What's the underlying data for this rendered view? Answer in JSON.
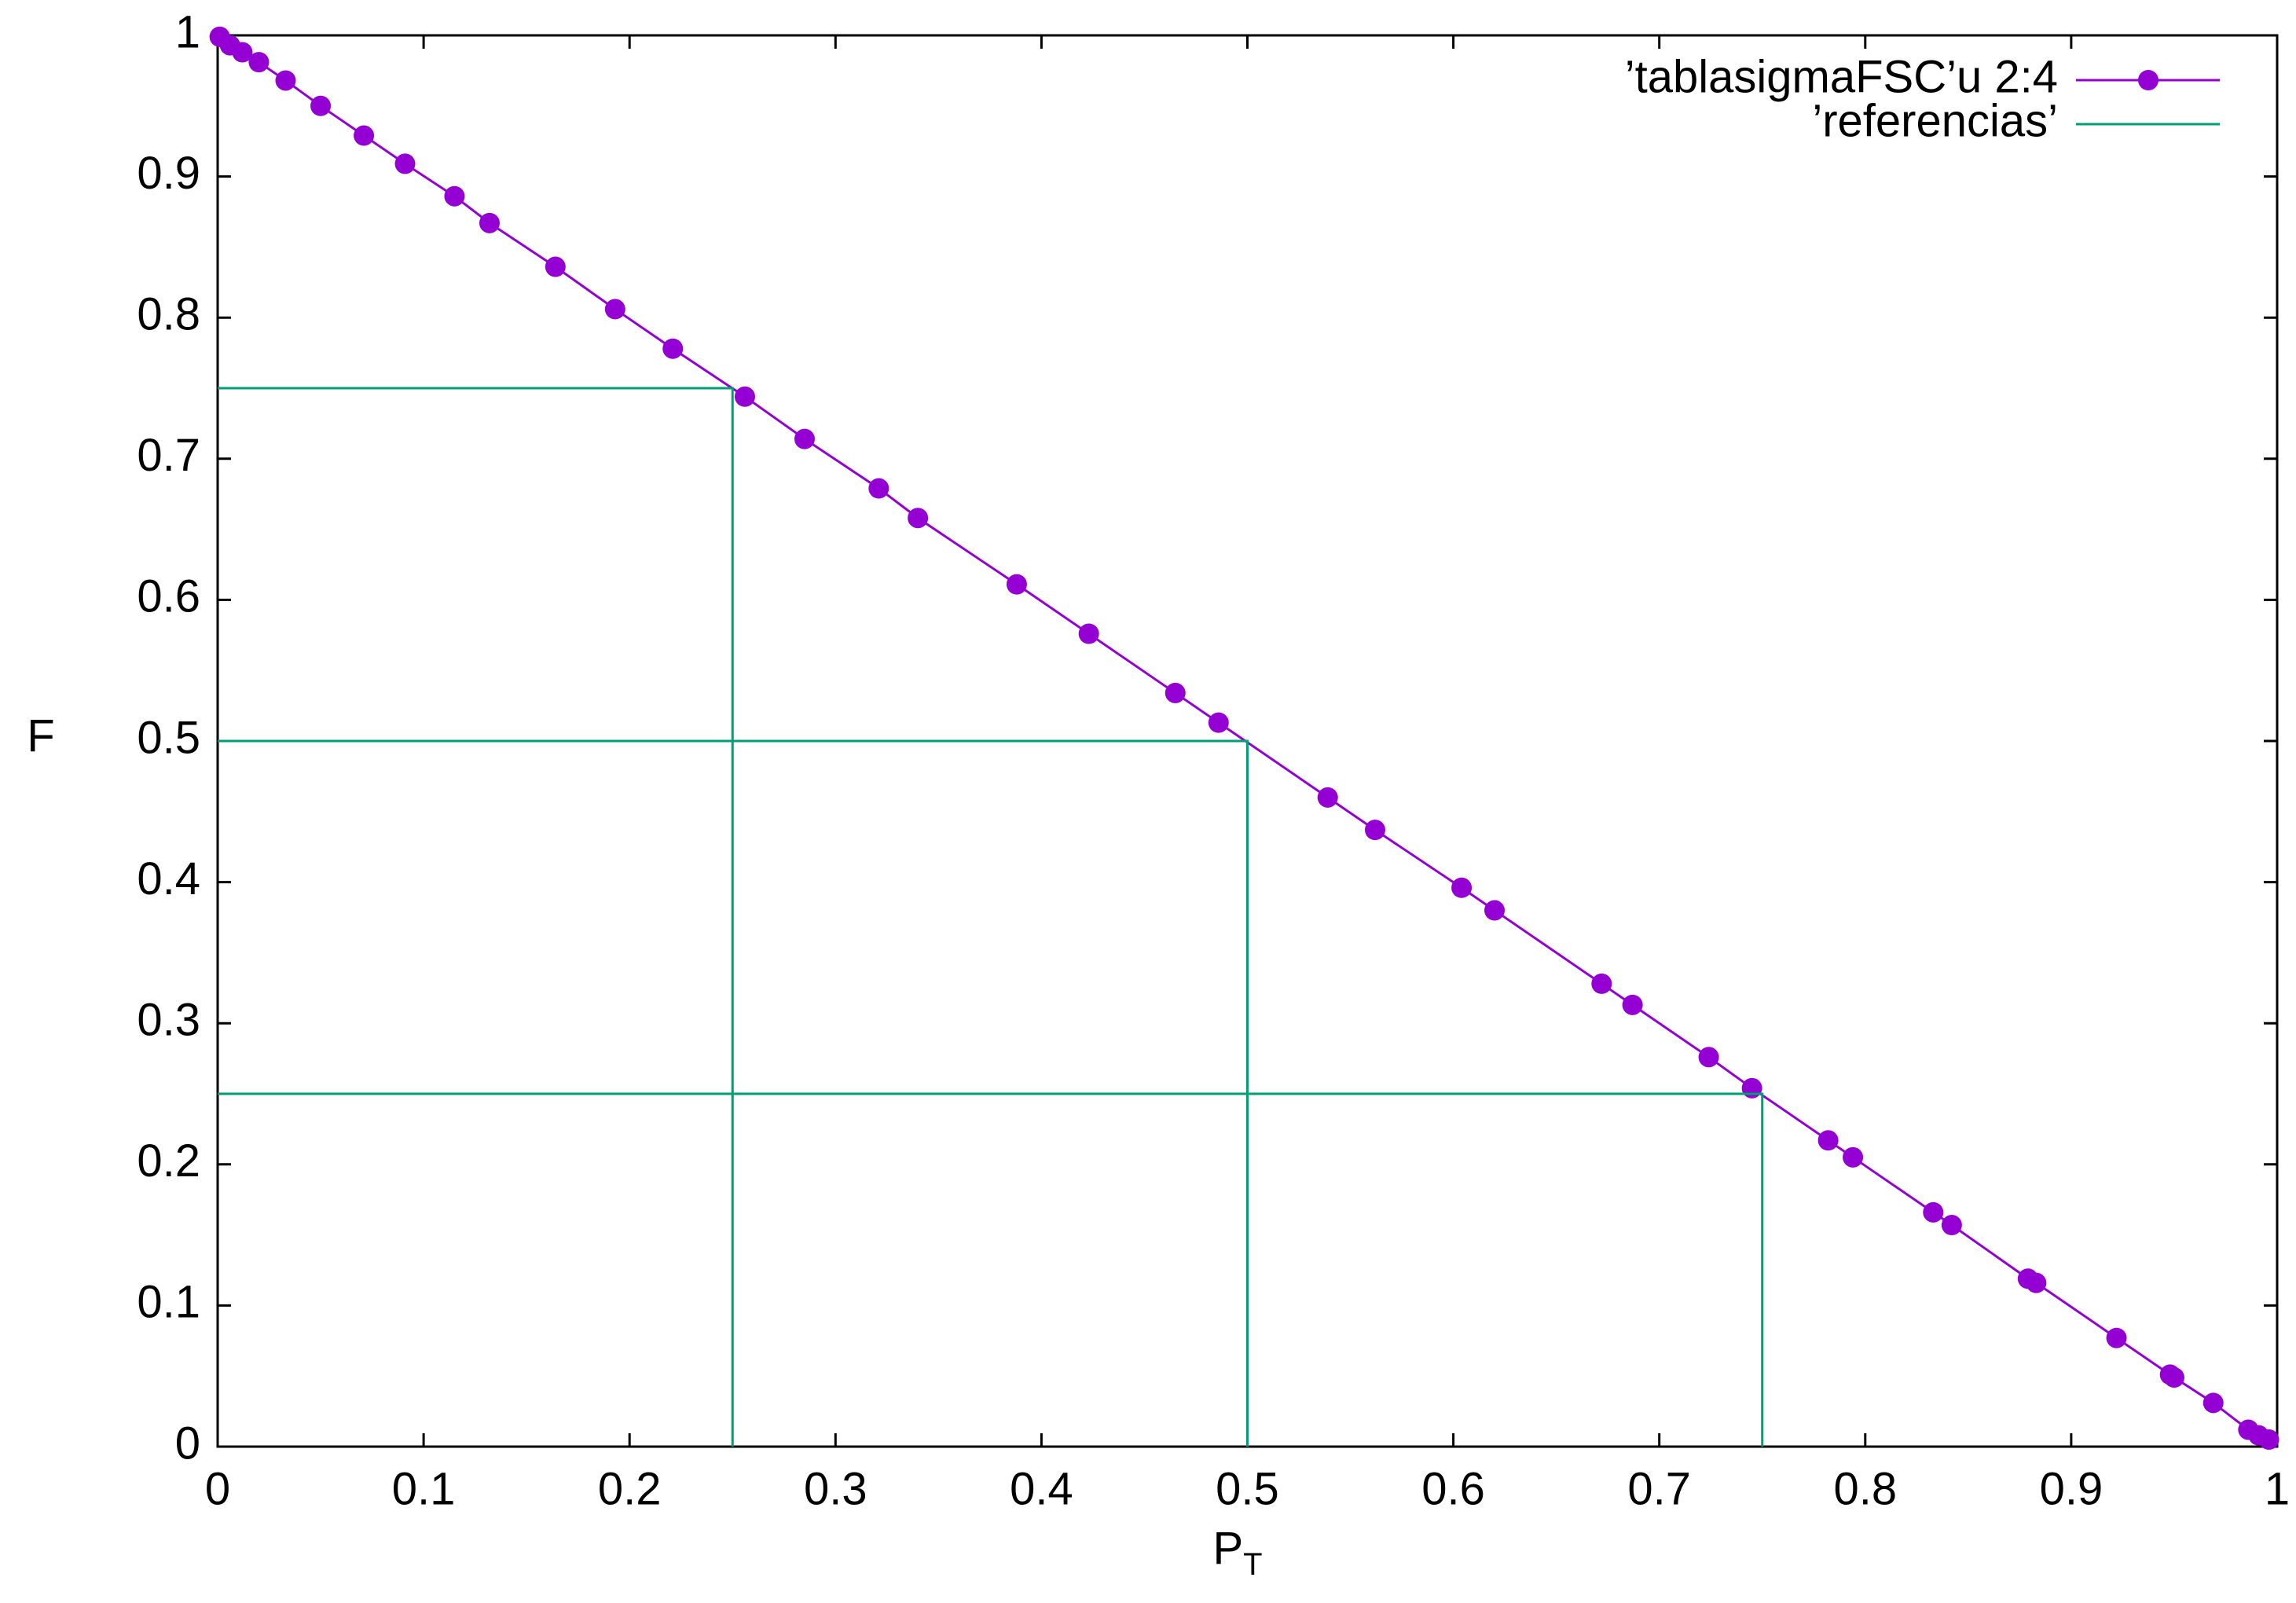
{
  "chart_data": {
    "type": "line",
    "xlabel": "P",
    "xlabel_subscript": "T",
    "ylabel": "F",
    "xlim": [
      0,
      1
    ],
    "ylim": [
      0,
      1
    ],
    "xticks": [
      0,
      0.1,
      0.2,
      0.3,
      0.4,
      0.5,
      0.6,
      0.7,
      0.8,
      0.9,
      1
    ],
    "yticks": [
      0,
      0.1,
      0.2,
      0.3,
      0.4,
      0.5,
      0.6,
      0.7,
      0.8,
      0.9,
      1
    ],
    "legend": "top-right",
    "series": [
      {
        "name": "’tablasigmaFSC’u 2:4",
        "color": "#9400d3",
        "markers": true,
        "x": [
          0.001,
          0.006,
          0.012,
          0.02,
          0.033,
          0.05,
          0.071,
          0.091,
          0.115,
          0.132,
          0.164,
          0.193,
          0.221,
          0.256,
          0.285,
          0.321,
          0.34,
          0.388,
          0.423,
          0.465,
          0.486,
          0.539,
          0.562,
          0.604,
          0.62,
          0.672,
          0.687,
          0.724,
          0.745,
          0.782,
          0.794,
          0.833,
          0.842,
          0.879,
          0.883,
          0.922,
          0.948,
          0.95,
          0.969,
          0.986,
          0.991,
          0.996
        ],
        "values": [
          0.999,
          0.993,
          0.988,
          0.981,
          0.968,
          0.95,
          0.929,
          0.909,
          0.886,
          0.867,
          0.836,
          0.806,
          0.778,
          0.744,
          0.714,
          0.679,
          0.658,
          0.611,
          0.576,
          0.534,
          0.513,
          0.46,
          0.437,
          0.396,
          0.38,
          0.328,
          0.313,
          0.276,
          0.254,
          0.217,
          0.205,
          0.166,
          0.157,
          0.119,
          0.116,
          0.077,
          0.051,
          0.049,
          0.031,
          0.012,
          0.008,
          0.005
        ]
      },
      {
        "name": "’referencias’",
        "color": "#009e73",
        "markers": false,
        "x": [
          0,
          0.25,
          0.25,
          null,
          0,
          0.5,
          0.5,
          null,
          0,
          0.75,
          0.75
        ],
        "values": [
          0.75,
          0.75,
          0,
          null,
          0.5,
          0.5,
          0,
          null,
          0.25,
          0.25,
          0
        ]
      }
    ]
  }
}
